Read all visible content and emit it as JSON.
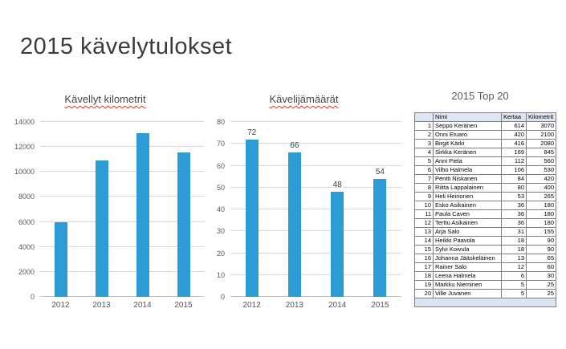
{
  "slide": {
    "title": "2015 kävelytulokset"
  },
  "colors": {
    "bar_fill": "#2d9bd5",
    "gridline": "#d9d9d9",
    "axis_line": "#bfbfbf",
    "table_accent_fill": "#dce6f2",
    "spellcheck_underline": "#cc3a2e"
  },
  "chart_data": [
    {
      "type": "bar",
      "title": "Kävellyt kilometrit",
      "categories": [
        "2012",
        "2013",
        "2014",
        "2015"
      ],
      "values": [
        6000,
        10900,
        13100,
        11550
      ],
      "ylim": [
        0,
        14000
      ],
      "ytick": 2000,
      "data_labels": false,
      "grid": true,
      "legend": "none"
    },
    {
      "type": "bar",
      "title": "Kävelijämäärät",
      "categories": [
        "2012",
        "2013",
        "2014",
        "2015"
      ],
      "values": [
        72,
        66,
        48,
        54
      ],
      "ylim": [
        0,
        80
      ],
      "ytick": 10,
      "data_labels": true,
      "grid": true,
      "legend": "none"
    },
    {
      "type": "table",
      "title": "2015 Top 20",
      "columns": [
        "Nimi",
        "Kertaa",
        "Kilometrit"
      ],
      "rows": [
        [
          1,
          "Seppo Keränen",
          614,
          3070
        ],
        [
          2,
          "Onni Etuaro",
          420,
          2100
        ],
        [
          3,
          "Birgit Kärki",
          416,
          2080
        ],
        [
          4,
          "Sirkka Keränen",
          169,
          845
        ],
        [
          5,
          "Anni Piela",
          112,
          560
        ],
        [
          6,
          "Vilho Halmela",
          106,
          530
        ],
        [
          7,
          "Pentti Niskanen",
          84,
          420
        ],
        [
          8,
          "Riitta Lappalainen",
          80,
          400
        ],
        [
          9,
          "Heli Heinonen",
          53,
          265
        ],
        [
          10,
          "Esko Asikainen",
          36,
          180
        ],
        [
          11,
          "Paula Caven",
          36,
          180
        ],
        [
          12,
          "Terttu Asikainen",
          36,
          180
        ],
        [
          13,
          "Arja Salo",
          31,
          155
        ],
        [
          14,
          "Heikki Paavola",
          18,
          90
        ],
        [
          15,
          "Sylvi Koivula",
          18,
          90
        ],
        [
          16,
          "Johanna Jääskeläinen",
          13,
          65
        ],
        [
          17,
          "Rainer Salo",
          12,
          60
        ],
        [
          18,
          "Leena Halmela",
          6,
          30
        ],
        [
          19,
          "Markku Nieminen",
          5,
          25
        ],
        [
          20,
          "Ville Juvanen",
          5,
          25
        ]
      ]
    }
  ]
}
